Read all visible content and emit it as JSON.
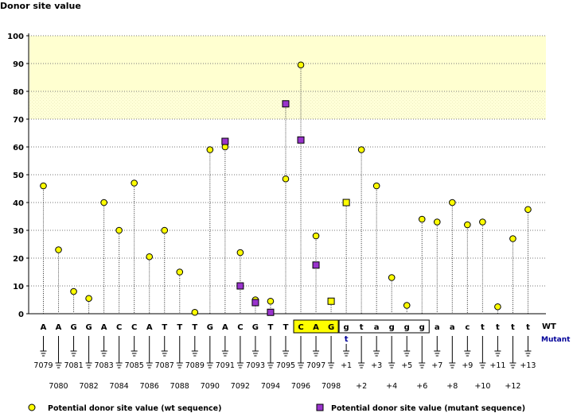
{
  "chart_data": {
    "type": "lollipop",
    "title": "Donor site value",
    "ylim": [
      0,
      100
    ],
    "yticks": [
      0,
      10,
      20,
      30,
      40,
      50,
      60,
      70,
      80,
      90,
      100
    ],
    "highlight_band": [
      70,
      100
    ],
    "positions": [
      {
        "base": "A",
        "label": "7079",
        "wt": 46
      },
      {
        "base": "A",
        "label": "7080",
        "wt": 23
      },
      {
        "base": "G",
        "label": "7081",
        "wt": 8
      },
      {
        "base": "G",
        "label": "7082",
        "wt": 5.5
      },
      {
        "base": "A",
        "label": "7083",
        "wt": 40
      },
      {
        "base": "C",
        "label": "7084",
        "wt": 30
      },
      {
        "base": "C",
        "label": "7085",
        "wt": 47
      },
      {
        "base": "A",
        "label": "7086",
        "wt": 20.5
      },
      {
        "base": "T",
        "label": "7087",
        "wt": 30
      },
      {
        "base": "T",
        "label": "7088",
        "wt": 15
      },
      {
        "base": "T",
        "label": "7089",
        "wt": 0.5
      },
      {
        "base": "G",
        "label": "7090",
        "wt": 59
      },
      {
        "base": "A",
        "label": "7091",
        "wt": 60,
        "mut": 62
      },
      {
        "base": "C",
        "label": "7092",
        "wt": 22,
        "mut": 10
      },
      {
        "base": "G",
        "label": "7093",
        "wt": 5,
        "mut": 4
      },
      {
        "base": "T",
        "label": "7094",
        "wt": 4.5,
        "mut": 0.5
      },
      {
        "base": "T",
        "label": "7095",
        "wt": 48.5,
        "mut": 75.5
      },
      {
        "base": "C",
        "label": "7096",
        "wt": 89.5,
        "mut": 62.5
      },
      {
        "base": "A",
        "label": "7097",
        "wt": 28,
        "mut": 17.5
      },
      {
        "base": "G",
        "label": "7098",
        "wt": 4.5,
        "mut": 4.5
      },
      {
        "base": "g",
        "label": "+1",
        "wt": 40,
        "mut": 40,
        "mutant_base": "t"
      },
      {
        "base": "t",
        "label": "+2",
        "wt": 59
      },
      {
        "base": "a",
        "label": "+3",
        "wt": 46
      },
      {
        "base": "g",
        "label": "+4",
        "wt": 13
      },
      {
        "base": "g",
        "label": "+5",
        "wt": 3
      },
      {
        "base": "g",
        "label": "+6",
        "wt": 34
      },
      {
        "base": "a",
        "label": "+7",
        "wt": 33
      },
      {
        "base": "a",
        "label": "+8",
        "wt": 40
      },
      {
        "base": "c",
        "label": "+9",
        "wt": 32
      },
      {
        "base": "t",
        "label": "+10",
        "wt": 33
      },
      {
        "base": "t",
        "label": "+11",
        "wt": 2.5
      },
      {
        "base": "t",
        "label": "+12",
        "wt": 27
      },
      {
        "base": "t",
        "label": "+13",
        "wt": 37.5
      }
    ],
    "exon_box": [
      17,
      19
    ],
    "intron_box": [
      20,
      25
    ],
    "row_label_wt": "WT",
    "row_label_mutant": "Mutant",
    "legend": {
      "wt": "Potential donor site value (wt sequence)",
      "mutant": "Potential donor site value (mutant sequence)"
    },
    "colors": {
      "wt_marker": "#ffff00",
      "mut_marker": "#9933cc",
      "band": "#ffffd0",
      "band_hatch": "#f6f6c8",
      "exon_fill": "#ffff00",
      "mutant_text": "#000099"
    }
  }
}
